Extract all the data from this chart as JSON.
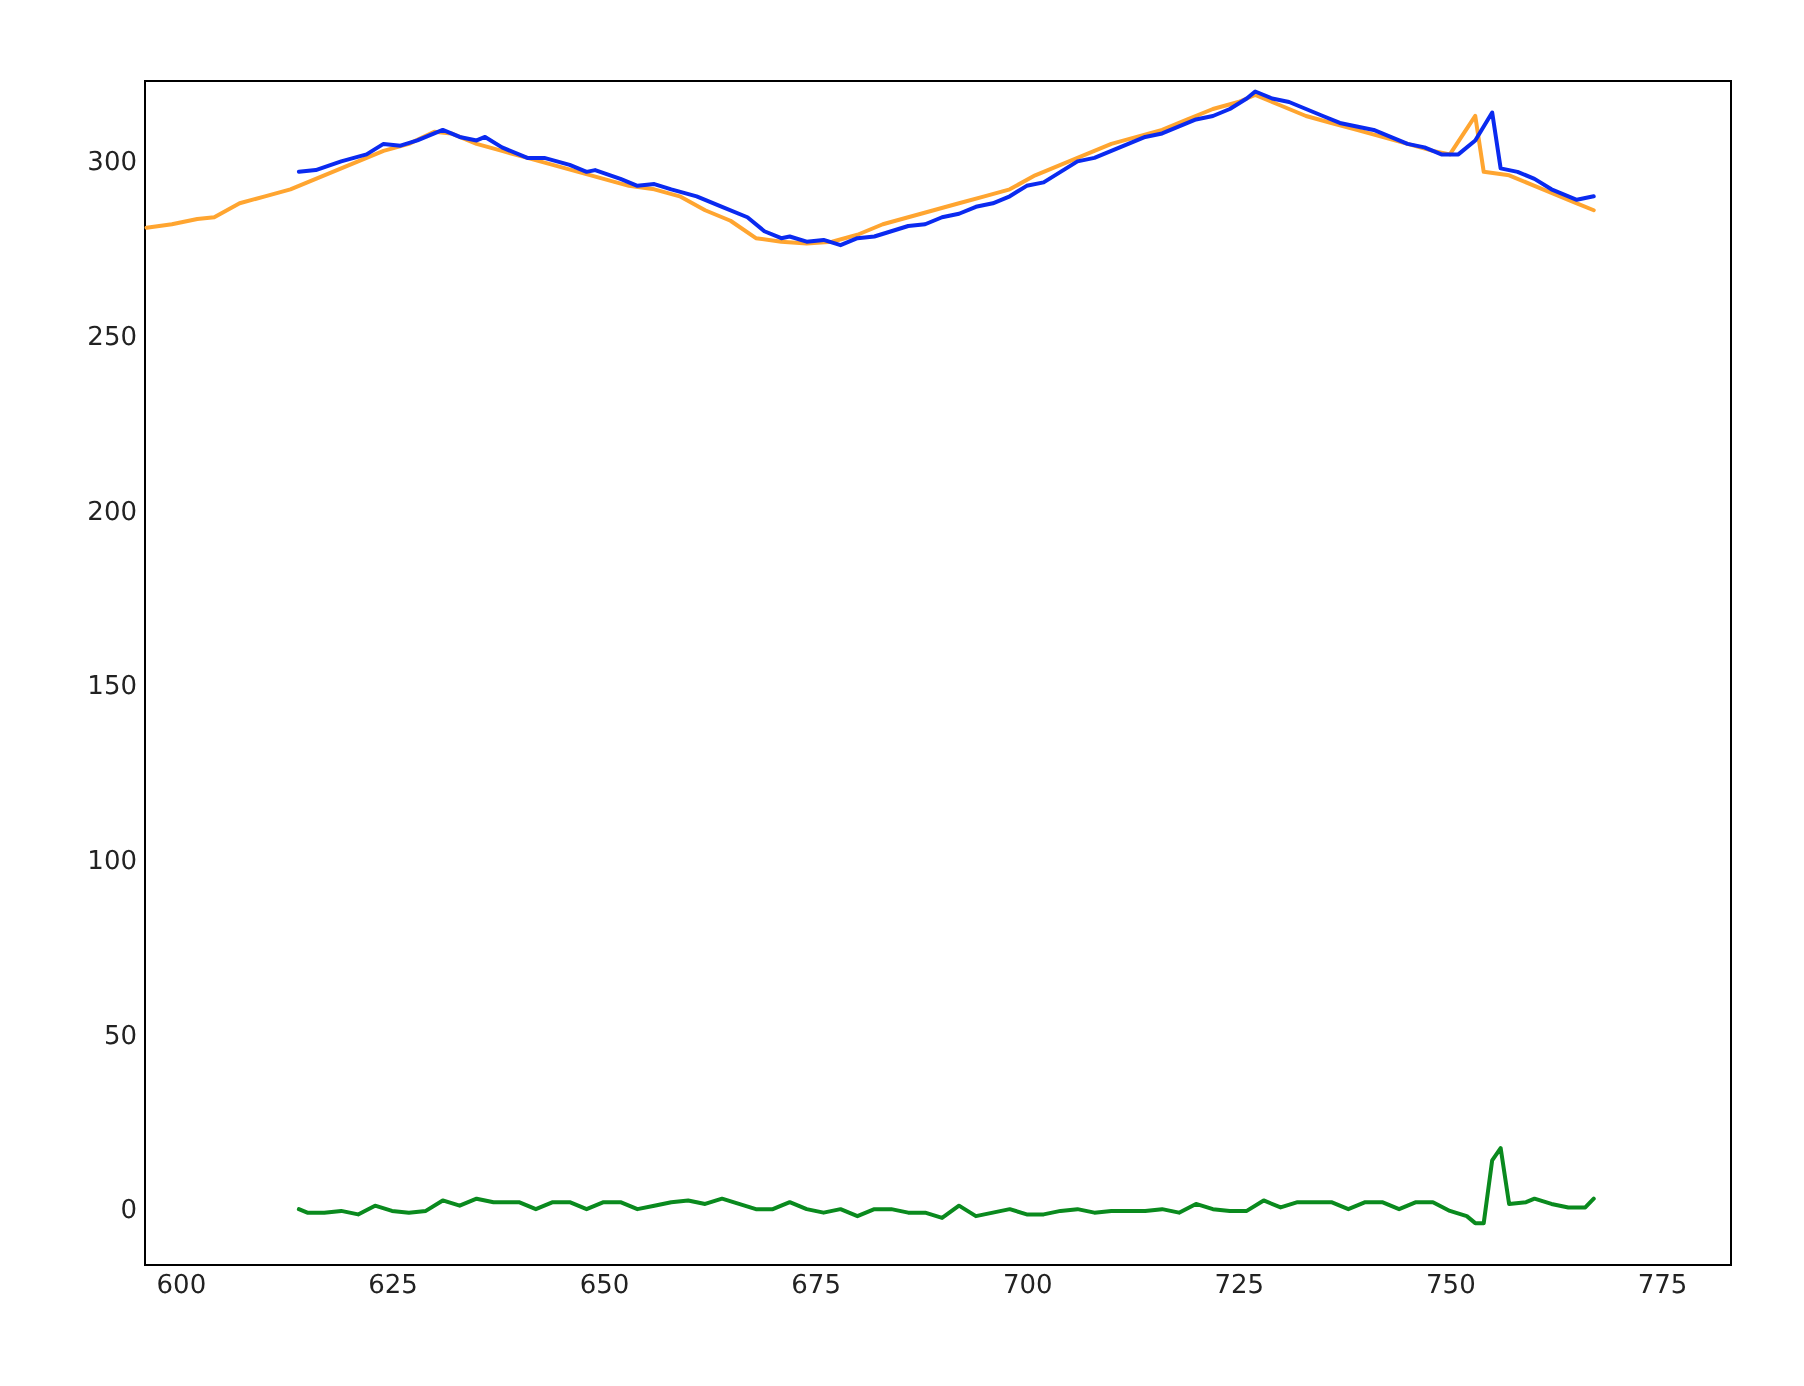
{
  "chart_data": {
    "type": "line",
    "xlim": [
      595.7,
      783.1
    ],
    "ylim": [
      -15.7,
      323.3
    ],
    "xticks": [
      600,
      625,
      650,
      675,
      700,
      725,
      750,
      775
    ],
    "yticks": [
      0,
      50,
      100,
      150,
      200,
      250,
      300
    ],
    "grid": false,
    "series": [
      {
        "color": "#ffa530",
        "x": [
          596,
          599,
          602,
          604,
          607,
          610,
          613,
          615,
          618,
          621,
          624,
          627,
          630,
          632,
          635,
          638,
          641,
          644,
          647,
          650,
          653,
          656,
          659,
          662,
          665,
          668,
          671,
          674,
          677,
          680,
          683,
          686,
          689,
          692,
          695,
          698,
          701,
          704,
          707,
          710,
          713,
          716,
          719,
          722,
          725,
          727,
          730,
          733,
          736,
          739,
          742,
          745,
          748,
          750,
          753,
          754,
          757,
          760,
          763,
          765,
          767
        ],
        "values": [
          281,
          282,
          283.5,
          284,
          288,
          290,
          292,
          294,
          297,
          300,
          303,
          305,
          308.5,
          308,
          305,
          303,
          301,
          299,
          297,
          295,
          293,
          292,
          290,
          286,
          283,
          278,
          277,
          276.5,
          277,
          279,
          282,
          284,
          286,
          288,
          290,
          292,
          296,
          299,
          302,
          305,
          307,
          309,
          312,
          315,
          317,
          319,
          316,
          313,
          311,
          309,
          307,
          305,
          303,
          302,
          313,
          297,
          296,
          293,
          290,
          288,
          286
        ]
      },
      {
        "color": "#0a2af0",
        "x": [
          614,
          616,
          619,
          622,
          624,
          626,
          628,
          631,
          633,
          635,
          636,
          638,
          641,
          643,
          646,
          648,
          649,
          652,
          654,
          656,
          658,
          661,
          664,
          667,
          669,
          671,
          672,
          674,
          676,
          678,
          680,
          682,
          684,
          686,
          688,
          690,
          692,
          694,
          696,
          698,
          700,
          702,
          704,
          706,
          708,
          710,
          712,
          714,
          716,
          718,
          720,
          722,
          724,
          726,
          727,
          729,
          731,
          733,
          735,
          737,
          739,
          741,
          743,
          745,
          747,
          749,
          751,
          753,
          755,
          756,
          758,
          760,
          762,
          764,
          765,
          767
        ],
        "values": [
          297,
          297.5,
          300,
          302,
          305,
          304.5,
          306,
          309,
          307,
          306,
          307,
          304,
          301,
          301,
          299,
          297,
          297.5,
          295,
          293,
          293.5,
          292,
          290,
          287,
          284,
          280,
          278,
          278.5,
          277,
          277.5,
          276,
          278,
          278.5,
          280,
          281.5,
          282,
          284,
          285,
          287,
          288,
          290,
          293,
          294,
          297,
          300,
          301,
          303,
          305,
          307,
          308,
          310,
          312,
          313,
          315,
          318,
          320,
          318,
          317,
          315,
          313,
          311,
          310,
          309,
          307,
          305,
          304,
          302,
          302,
          306,
          314,
          298,
          297,
          295,
          292,
          290,
          289,
          290
        ]
      },
      {
        "color": "#0a8a1e",
        "x": [
          614,
          615,
          617,
          619,
          621,
          623,
          625,
          627,
          629,
          631,
          633,
          635,
          637,
          640,
          642,
          644,
          646,
          648,
          650,
          652,
          654,
          656,
          658,
          660,
          662,
          664,
          666,
          668,
          670,
          672,
          674,
          676,
          678,
          680,
          682,
          684,
          686,
          688,
          690,
          692,
          694,
          696,
          698,
          700,
          702,
          704,
          706,
          708,
          710,
          712,
          714,
          716,
          718,
          720,
          722,
          724,
          726,
          728,
          730,
          732,
          734,
          736,
          738,
          740,
          742,
          744,
          746,
          748,
          750,
          752,
          753,
          754,
          755,
          756,
          757,
          759,
          760,
          762,
          764,
          766,
          767
        ],
        "values": [
          0,
          -1,
          -1,
          -0.5,
          -1.5,
          1,
          -0.5,
          -1,
          -0.5,
          2.5,
          1,
          3,
          2,
          2,
          0,
          2,
          2,
          0,
          2,
          2,
          0,
          1,
          2,
          2.5,
          1.5,
          3,
          1.5,
          0,
          0,
          2,
          0,
          -1,
          0,
          -2,
          0,
          0,
          -1,
          -1,
          -2.5,
          1,
          -2,
          -1,
          0,
          -1.5,
          -1.5,
          -0.5,
          0,
          -1,
          -0.5,
          -0.5,
          -0.5,
          0,
          -1,
          1.5,
          0,
          -0.5,
          -0.5,
          2.5,
          0.5,
          2,
          2,
          2,
          0,
          2,
          2,
          0,
          2,
          2,
          -0.5,
          -2,
          -4,
          -4,
          14,
          17.5,
          1.5,
          2,
          3,
          1.5,
          0.5,
          0.5,
          3
        ]
      }
    ]
  }
}
